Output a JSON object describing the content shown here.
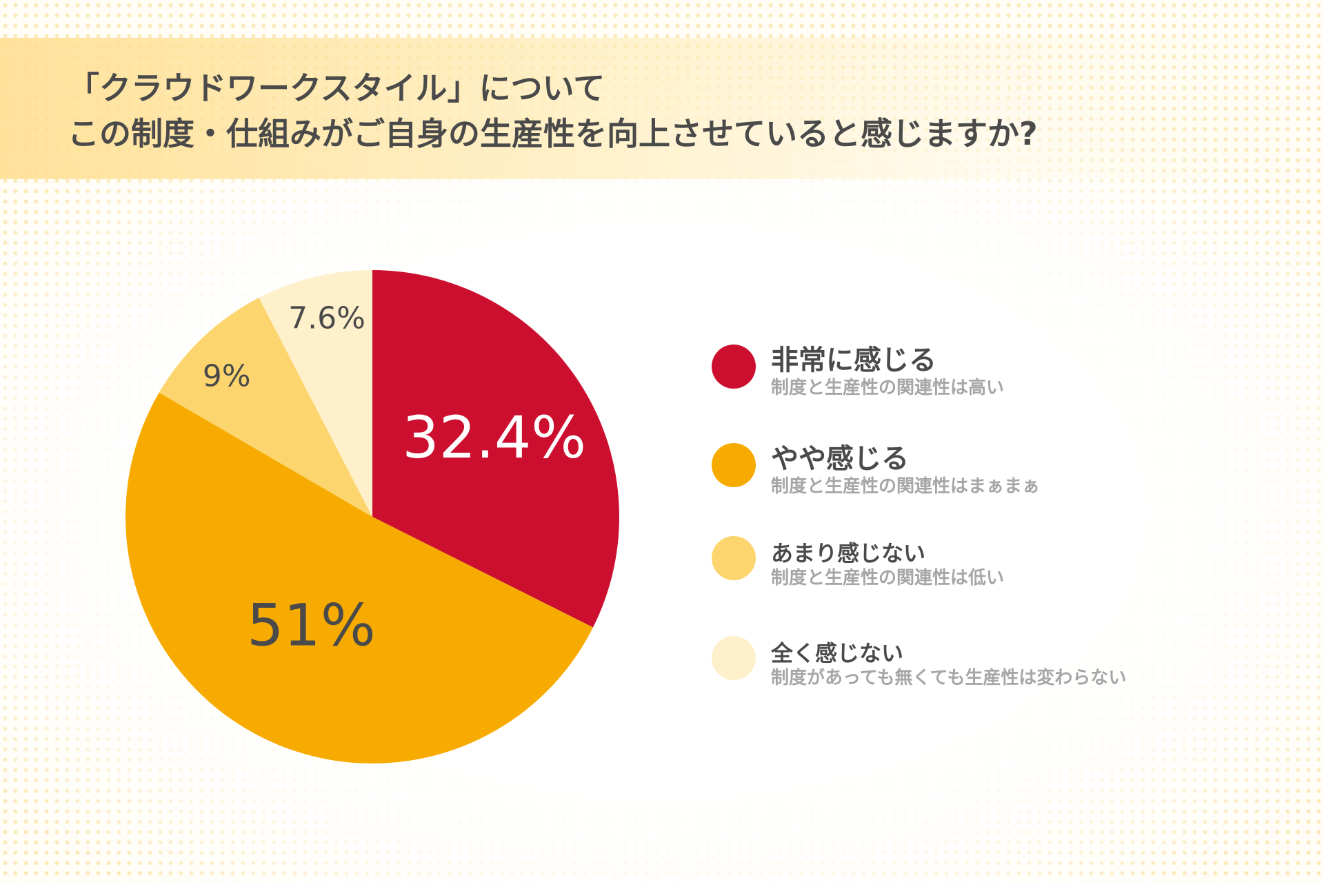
{
  "title": {
    "line1": "「クラウドワークスタイル」について",
    "line2": "この制度・仕組みがご自身の生産性を向上させていると感じますか?"
  },
  "chart_data": {
    "type": "pie",
    "title": "「クラウドワークスタイル」について この制度・仕組みがご自身の生産性を向上させていると感じますか?",
    "start_angle_deg": 0,
    "direction": "clockwise",
    "legend_position": "right",
    "slices": [
      {
        "label": "非常に感じる",
        "description": "制度と生産性の関連性は高い",
        "value": 32.4,
        "display": "32.4%",
        "color": "#cc0f2f",
        "text_color": "#ffffff"
      },
      {
        "label": "やや感じる",
        "description": "制度と生産性の関連性はまぁまぁ",
        "value": 51,
        "display": "51%",
        "color": "#f7ab00",
        "text_color": "#4a4a4a"
      },
      {
        "label": "あまり感じない",
        "description": "制度と生産性の関連性は低い",
        "value": 9,
        "display": "9%",
        "color": "#fdd56e",
        "text_color": "#4a4a4a"
      },
      {
        "label": "全く感じない",
        "description": "制度があっても無くても生産性は変わらない",
        "value": 7.6,
        "display": "7.6%",
        "color": "#fff0cc",
        "text_color": "#4a4a4a"
      }
    ]
  }
}
